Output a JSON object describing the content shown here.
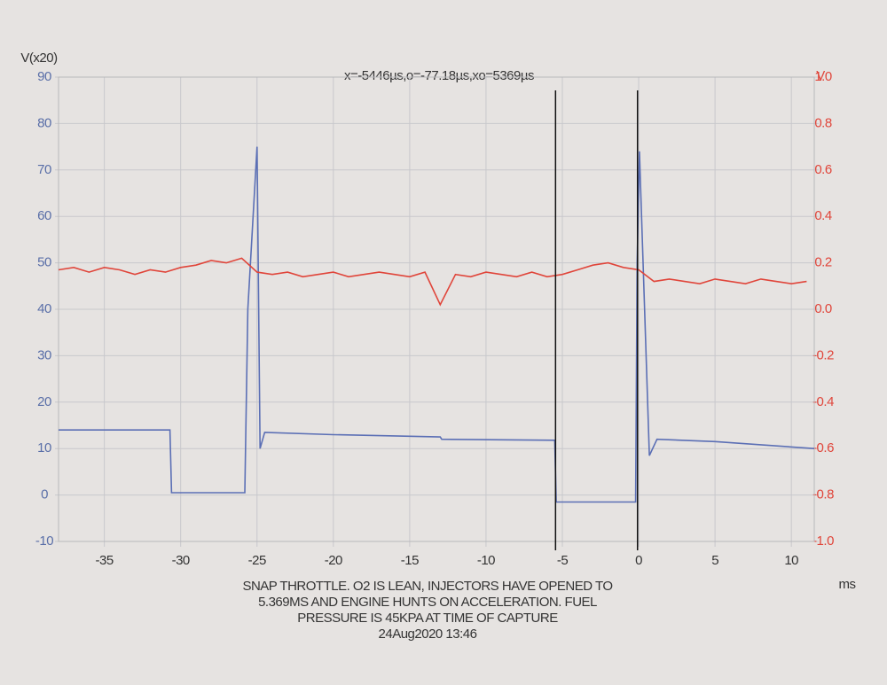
{
  "chart_data": {
    "type": "line",
    "title": "x=-5446µs,o=-77.18µs,xo=5369µs",
    "y_label": "V(x20)",
    "y2_label": "V",
    "x_label": "ms",
    "caption": [
      "SNAP THROTTLE. O2 IS LEAN, INJECTORS HAVE OPENED TO",
      "5.369MS AND ENGINE HUNTS ON ACCELERATION. FUEL",
      "PRESSURE IS 45KPA AT TIME OF CAPTURE",
      "24Aug2020 13:46"
    ],
    "xlim": [
      -38,
      11.5
    ],
    "xticks": [
      -35,
      -30,
      -25,
      -20,
      -15,
      -10,
      -5,
      0,
      5,
      10
    ],
    "ylim": [
      -10,
      90
    ],
    "yticks": [
      -10,
      0,
      10,
      20,
      30,
      40,
      50,
      60,
      70,
      80,
      90
    ],
    "y2lim": [
      -1,
      1
    ],
    "y2ticks": [
      {
        "value": -1,
        "label": "-1.0"
      },
      -0.8,
      -0.6,
      -0.4,
      -0.2,
      {
        "value": 0,
        "label": "0.0"
      },
      0.2,
      0.4,
      0.6,
      0.8,
      {
        "value": 1,
        "label": "1.0"
      }
    ],
    "grid": true,
    "y_color": "#5a6fa8",
    "y2_color": "#e0453a",
    "cursors": [
      -5.446,
      -0.077
    ],
    "series": [
      {
        "color": "#5b6fb5",
        "axis": "y",
        "x": [
          -38,
          -30.7,
          -30.6,
          -25.8,
          -25.6,
          -25.0,
          -24.8,
          -24.5,
          -20,
          -13,
          -12.9,
          -5.5,
          -5.4,
          -0.2,
          -0.1,
          0.05,
          0.7,
          1.2,
          5,
          11.5
        ],
        "values": [
          14,
          14,
          0.5,
          0.5,
          40,
          75,
          10,
          13.5,
          13,
          12.5,
          12,
          11.8,
          -1.5,
          -1.5,
          50,
          74,
          8.5,
          12,
          11.5,
          10
        ]
      },
      {
        "color": "#e0453a",
        "axis": "y2",
        "x": [
          -38,
          -37,
          -36,
          -35,
          -34,
          -33,
          -32,
          -31,
          -30,
          -29,
          -28,
          -27,
          -26,
          -25,
          -24,
          -23,
          -22,
          -21,
          -20,
          -19,
          -18,
          -17,
          -16,
          -15,
          -14,
          -13,
          -12,
          -11,
          -10,
          -9,
          -8,
          -7,
          -6,
          -5,
          -4,
          -3,
          -2,
          -1,
          0,
          1,
          2,
          3,
          4,
          5,
          6,
          7,
          8,
          9,
          10,
          11
        ],
        "values": [
          0.17,
          0.18,
          0.16,
          0.18,
          0.17,
          0.15,
          0.17,
          0.16,
          0.18,
          0.19,
          0.21,
          0.2,
          0.22,
          0.16,
          0.15,
          0.16,
          0.14,
          0.15,
          0.16,
          0.14,
          0.15,
          0.16,
          0.15,
          0.14,
          0.16,
          0.02,
          0.15,
          0.14,
          0.16,
          0.15,
          0.14,
          0.16,
          0.14,
          0.15,
          0.17,
          0.19,
          0.2,
          0.18,
          0.17,
          0.12,
          0.13,
          0.12,
          0.11,
          0.13,
          0.12,
          0.11,
          0.13,
          0.12,
          0.11,
          0.12
        ]
      }
    ]
  }
}
